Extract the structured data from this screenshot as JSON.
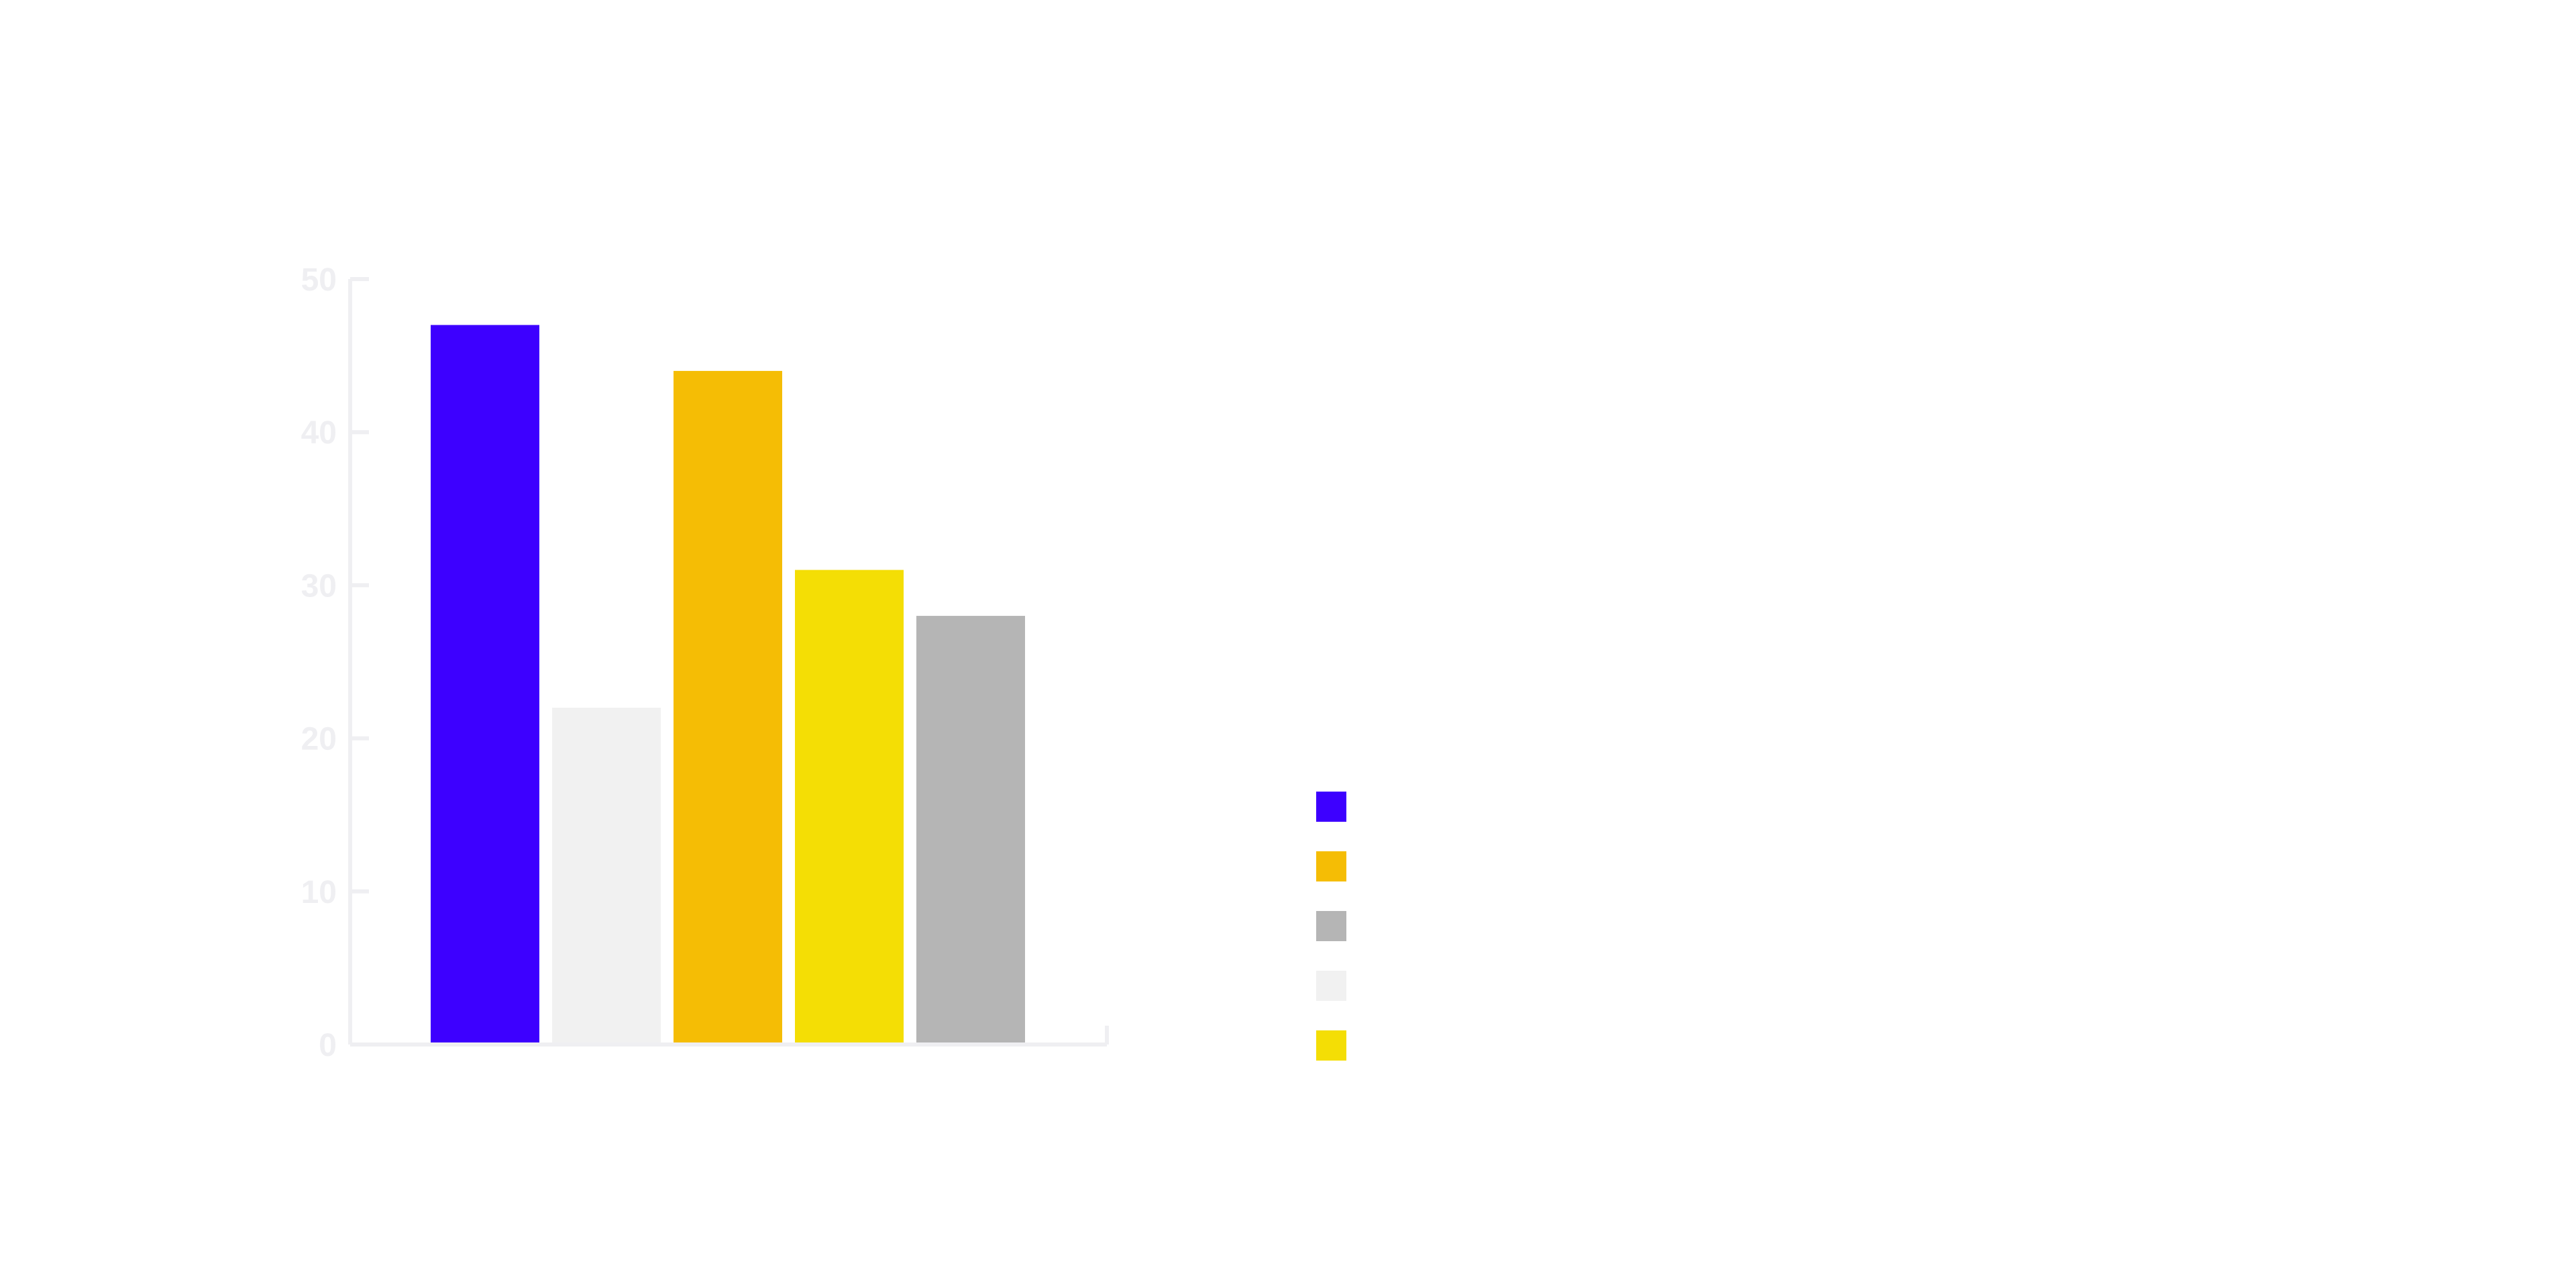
{
  "chart_data": {
    "type": "bar",
    "categories": [
      "",
      "",
      "",
      "",
      ""
    ],
    "series": [
      {
        "color": "#3d00ff",
        "values": [
          47,
          null,
          null,
          null,
          null
        ]
      },
      {
        "color": "#f1f1f1",
        "values": [
          null,
          22,
          null,
          null,
          null
        ]
      },
      {
        "color": "#f5bd05",
        "values": [
          null,
          null,
          44,
          null,
          null
        ]
      },
      {
        "color": "#f4de05",
        "values": [
          null,
          null,
          null,
          31,
          null
        ]
      },
      {
        "color": "#b5b5b5",
        "values": [
          null,
          null,
          null,
          null,
          28
        ]
      }
    ],
    "bars": [
      {
        "value": 47,
        "color": "#3d00ff"
      },
      {
        "value": 22,
        "color": "#f1f1f1"
      },
      {
        "value": 44,
        "color": "#f5bd05"
      },
      {
        "value": 31,
        "color": "#f4de05"
      },
      {
        "value": 28,
        "color": "#b5b5b5"
      }
    ],
    "ylim": [
      0,
      50
    ],
    "yticks": [
      0,
      10,
      20,
      30,
      40,
      50
    ],
    "grid": false,
    "axis_color": "#efeff2",
    "tick_label_color": "#efeff2",
    "legend": {
      "placement": "right",
      "swatches": [
        "#3d00ff",
        "#f5bd05",
        "#b5b5b5",
        "#f1f1f1",
        "#f4de05"
      ]
    },
    "title": "",
    "xlabel": "",
    "ylabel": ""
  }
}
